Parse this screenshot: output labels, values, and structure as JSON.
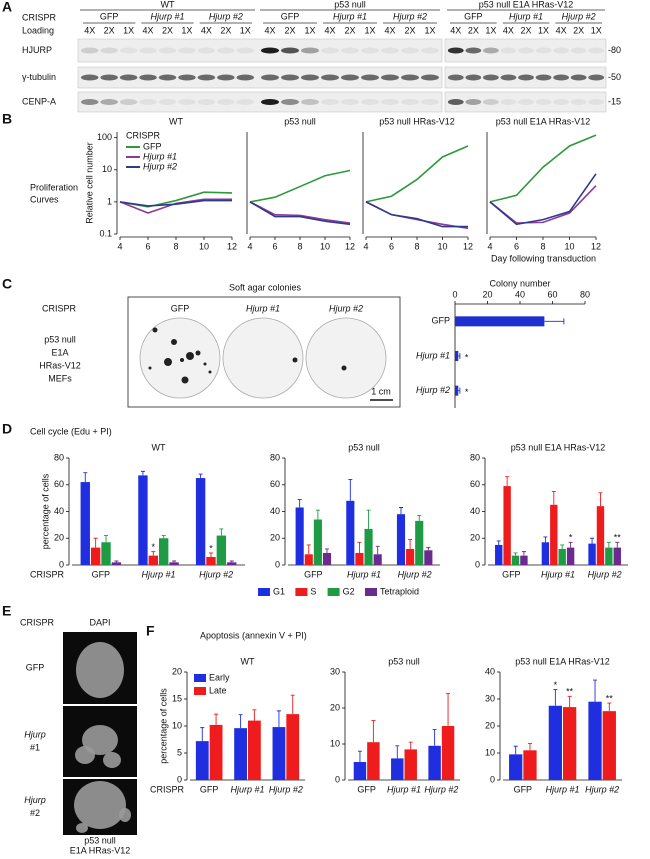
{
  "panel_letters": [
    "A",
    "B",
    "C",
    "D",
    "E",
    "F"
  ],
  "blot": {
    "row_label": "CRISPR",
    "loading_label": "Loading",
    "cell_lines": [
      "WT",
      "p53 null",
      "p53 null E1A HRas-V12"
    ],
    "guides": [
      [
        "GFP",
        "Hjurp #1",
        "Hjurp #2"
      ],
      [
        "GFP",
        "Hjurp #1",
        "Hjurp #2"
      ],
      [
        "GFP",
        "Hjurp #1",
        "Hjurp #2"
      ]
    ],
    "lanes": [
      [
        "4X",
        "2X",
        "1X"
      ],
      [
        "4X",
        "2X",
        "1X"
      ],
      [
        "4X",
        "2X",
        "1X"
      ],
      [
        "4X",
        "2X",
        "1X"
      ],
      [
        "4X",
        "2X",
        "1X"
      ],
      [
        "4X",
        "2X",
        "1X"
      ],
      [
        "4X",
        "2X",
        "1X"
      ],
      [
        "4X",
        "2X",
        "1X"
      ],
      [
        "4X",
        "2X",
        "1X"
      ]
    ],
    "proteins": [
      "HJURP",
      "γ-tubulin",
      "CENP-A"
    ],
    "markers": [
      "-80",
      "-50",
      "-15"
    ]
  },
  "proliferation": {
    "label": [
      "Proliferation",
      "Curves"
    ]
  },
  "soft_agar": {
    "title": "Soft agar colonies",
    "row_label": "CRISPR",
    "cells": [
      "p53 null",
      "E1A",
      "HRas-V12",
      "MEFs"
    ],
    "images": [
      "GFP",
      "Hjurp #1",
      "Hjurp #2"
    ],
    "scale_bar": "1 cm"
  },
  "cell_cycle": {
    "title": "Cell cycle (Edu + PI)",
    "row_label": "CRISPR"
  },
  "dapi": {
    "row_label": "CRISPR",
    "column": "DAPI",
    "rows": [
      [
        "GFP"
      ],
      [
        "Hjurp",
        "#1"
      ],
      [
        "Hjurp",
        "#2"
      ]
    ],
    "caption": [
      "p53 null",
      "E1A HRas-V12"
    ]
  },
  "apoptosis": {
    "title": "Apoptosis (annexin V + PI)",
    "row_label": "CRISPR"
  },
  "chart_data": [
    {
      "type": "line",
      "title": "WT",
      "ylabel": "Relative cell number",
      "legend_title": "CRISPR",
      "legend": "upper left",
      "log_scale": true,
      "x": [
        4,
        6,
        8,
        10,
        12
      ],
      "xlim": [
        4,
        12
      ],
      "xticks": [
        4,
        6,
        8,
        10,
        12
      ],
      "ylim": [
        0.1,
        150
      ],
      "yticks": [
        0.1,
        1,
        10,
        100
      ],
      "series": [
        {
          "name": "GFP",
          "color": "#2e9a3a",
          "values": [
            1,
            0.7,
            1.1,
            2,
            1.9
          ]
        },
        {
          "name": "Hjurp #1",
          "color": "#8e3a96",
          "values": [
            1,
            0.45,
            0.9,
            1.2,
            1.2
          ]
        },
        {
          "name": "Hjurp #2",
          "color": "#2e3a8c",
          "values": [
            1,
            0.75,
            0.85,
            1.1,
            1.1
          ]
        }
      ]
    },
    {
      "type": "line",
      "title": "p53 null",
      "log_scale": true,
      "x": [
        4,
        6,
        8,
        10,
        12
      ],
      "xlim": [
        4,
        12
      ],
      "xticks": [
        4,
        6,
        8,
        10,
        12
      ],
      "ylim": [
        0.1,
        150
      ],
      "series": [
        {
          "color": "#2e9a3a",
          "values": [
            1,
            1.4,
            3,
            6.5,
            9.5
          ]
        },
        {
          "color": "#8e3a96",
          "values": [
            1,
            0.4,
            0.38,
            0.28,
            0.22
          ]
        },
        {
          "color": "#2e3a8c",
          "values": [
            1,
            0.35,
            0.35,
            0.25,
            0.2
          ]
        }
      ]
    },
    {
      "type": "line",
      "title": "p53 null HRas-V12",
      "log_scale": true,
      "x": [
        4,
        6,
        8,
        10,
        12
      ],
      "xlim": [
        4,
        12
      ],
      "xticks": [
        4,
        6,
        8,
        10,
        12
      ],
      "ylim": [
        0.1,
        150
      ],
      "series": [
        {
          "color": "#2e9a3a",
          "values": [
            1,
            1.5,
            5,
            25,
            55
          ]
        },
        {
          "color": "#8e3a96",
          "values": [
            1,
            0.4,
            0.28,
            0.2,
            0.15
          ]
        },
        {
          "color": "#2e3a8c",
          "values": [
            1,
            0.4,
            0.3,
            0.17,
            0.17
          ]
        }
      ]
    },
    {
      "type": "line",
      "title": "p53 null E1A HRas-V12",
      "xlabel": "Day following transduction",
      "log_scale": true,
      "x": [
        4,
        6,
        8,
        10,
        12
      ],
      "xlim": [
        4,
        12
      ],
      "xticks": [
        4,
        6,
        8,
        10,
        12
      ],
      "ylim": [
        0.1,
        150
      ],
      "series": [
        {
          "color": "#2e9a3a",
          "values": [
            1,
            1.6,
            12,
            55,
            120
          ]
        },
        {
          "color": "#8e3a96",
          "values": [
            1,
            0.22,
            0.23,
            0.45,
            3.2
          ]
        },
        {
          "color": "#2e3a8c",
          "values": [
            1,
            0.2,
            0.28,
            0.5,
            7.5
          ]
        }
      ]
    },
    {
      "type": "hbar",
      "title": "Colony number",
      "categories": [
        "GFP",
        "Hjurp #1",
        "Hjurp #2"
      ],
      "color": "#1f2fd0",
      "values": [
        55,
        2,
        2
      ],
      "errors": [
        12,
        1,
        1
      ],
      "significance": [
        null,
        "*",
        "*"
      ],
      "xlim": [
        0,
        80
      ],
      "xticks": [
        0,
        20,
        40,
        60,
        80
      ]
    },
    {
      "type": "bar",
      "title": "WT",
      "ylabel": "percentage of cells",
      "categories": [
        "GFP",
        "Hjurp #1",
        "Hjurp #2"
      ],
      "ylim": [
        0,
        80
      ],
      "yticks": [
        0,
        20,
        40,
        60,
        80
      ],
      "series": [
        {
          "color": "#1f2fe0",
          "values": [
            62,
            67,
            65
          ],
          "errors": [
            7,
            3,
            3
          ]
        },
        {
          "color": "#ee1c1c",
          "values": [
            13,
            7,
            6
          ],
          "errors": [
            7,
            3,
            3
          ],
          "significance": [
            null,
            "*",
            "*"
          ]
        },
        {
          "color": "#1f9a45",
          "values": [
            17,
            20,
            22
          ],
          "errors": [
            5,
            2,
            5
          ]
        },
        {
          "color": "#6a2a8e",
          "values": [
            2,
            2,
            2
          ],
          "errors": [
            1,
            1,
            1
          ]
        }
      ]
    },
    {
      "type": "bar",
      "title": "p53 null",
      "legend": "below",
      "categories": [
        "GFP",
        "Hjurp #1",
        "Hjurp #2"
      ],
      "ylim": [
        0,
        80
      ],
      "yticks": [
        0,
        20,
        40,
        60,
        80
      ],
      "series": [
        {
          "name": "G1",
          "color": "#1f2fe0",
          "values": [
            43,
            48,
            38
          ],
          "errors": [
            6,
            16,
            5
          ]
        },
        {
          "name": "S",
          "color": "#ee1c1c",
          "values": [
            8,
            9,
            12
          ],
          "errors": [
            7,
            8,
            7
          ]
        },
        {
          "name": "G2",
          "color": "#1f9a45",
          "values": [
            34,
            27,
            33
          ],
          "errors": [
            7,
            14,
            4
          ]
        },
        {
          "name": "Tetraploid",
          "color": "#6a2a8e",
          "values": [
            9,
            8,
            11
          ],
          "errors": [
            3,
            6,
            2
          ]
        }
      ]
    },
    {
      "type": "bar",
      "title": "p53 null E1A HRas-V12",
      "categories": [
        "GFP",
        "Hjurp #1",
        "Hjurp #2"
      ],
      "ylim": [
        0,
        80
      ],
      "yticks": [
        0,
        20,
        40,
        60,
        80
      ],
      "series": [
        {
          "color": "#1f2fe0",
          "values": [
            15,
            17,
            16
          ],
          "errors": [
            3,
            4,
            4
          ]
        },
        {
          "color": "#ee1c1c",
          "values": [
            59,
            45,
            44
          ],
          "errors": [
            7,
            10,
            10
          ]
        },
        {
          "color": "#1f9a45",
          "values": [
            7,
            12,
            13
          ],
          "errors": [
            2,
            3,
            4
          ]
        },
        {
          "color": "#6a2a8e",
          "values": [
            7,
            13,
            13
          ],
          "errors": [
            3,
            4,
            4
          ],
          "significance": [
            null,
            "*",
            "**"
          ]
        }
      ]
    },
    {
      "type": "bar",
      "title": "WT",
      "ylabel": "percentage of cells",
      "legend": "upper left",
      "categories": [
        "GFP",
        "Hjurp #1",
        "Hjurp #2"
      ],
      "ylim": [
        0,
        20
      ],
      "yticks": [
        0,
        5,
        10,
        15,
        20
      ],
      "series": [
        {
          "name": "Early",
          "color": "#1f2fe0",
          "values": [
            7.2,
            9.6,
            9.8
          ],
          "errors": [
            2.5,
            2.5,
            3
          ]
        },
        {
          "name": "Late",
          "color": "#ee1c1c",
          "values": [
            10.2,
            11,
            12.2
          ],
          "errors": [
            2,
            2,
            3.5
          ]
        }
      ]
    },
    {
      "type": "bar",
      "title": "p53 null",
      "categories": [
        "GFP",
        "Hjurp #1",
        "Hjurp #2"
      ],
      "ylim": [
        0,
        30
      ],
      "yticks": [
        0,
        10,
        20,
        30
      ],
      "series": [
        {
          "color": "#1f2fe0",
          "values": [
            5,
            6,
            9.5
          ],
          "errors": [
            3,
            3.5,
            4.5
          ]
        },
        {
          "color": "#ee1c1c",
          "values": [
            10.5,
            8.5,
            15
          ],
          "errors": [
            6,
            2,
            9
          ]
        }
      ]
    },
    {
      "type": "bar",
      "title": "p53 null E1A HRas-V12",
      "categories": [
        "GFP",
        "Hjurp #1",
        "Hjurp #2"
      ],
      "ylim": [
        0,
        40
      ],
      "yticks": [
        0,
        10,
        20,
        30,
        40
      ],
      "series": [
        {
          "color": "#1f2fe0",
          "values": [
            9.5,
            27.5,
            29
          ],
          "errors": [
            3,
            6,
            8
          ],
          "significance": [
            null,
            "*",
            null
          ]
        },
        {
          "color": "#ee1c1c",
          "values": [
            11,
            27,
            25.5
          ],
          "errors": [
            2.5,
            4,
            3
          ],
          "significance": [
            null,
            "**",
            "**"
          ]
        }
      ]
    }
  ]
}
